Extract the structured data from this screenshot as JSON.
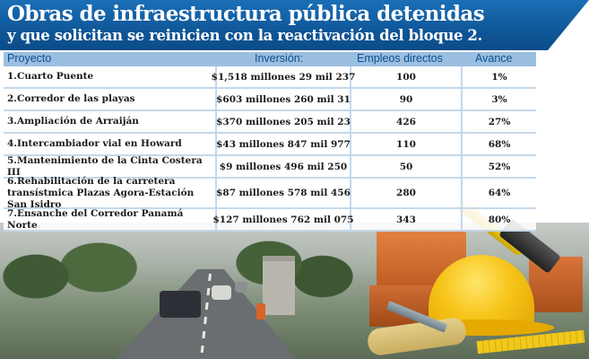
{
  "header": {
    "title": "Obras de infraestructura pública detenidas",
    "subtitle": "y que solicitan se reinicien con la reactivación del bloque 2."
  },
  "table": {
    "columns": {
      "project": "Proyecto",
      "investment": "Inversión:",
      "jobs": "Empleos directos",
      "progress": "Avance"
    },
    "rows": [
      {
        "project": "1.Cuarto Puente",
        "investment": "$1,518 millones 29 mil 237",
        "jobs": "100",
        "progress": "1%"
      },
      {
        "project": "2.Corredor de las playas",
        "investment": "$603 millones 260 mil 31",
        "jobs": "90",
        "progress": "3%"
      },
      {
        "project": "3.Ampliación de Arraiján",
        "investment": "$370 millones 205 mil 23",
        "jobs": "426",
        "progress": "27%"
      },
      {
        "project": "4.Intercambiador vial en Howard",
        "investment": "$43 millones 847 mil 977",
        "jobs": "110",
        "progress": "68%"
      },
      {
        "project": "5.Mantenimiento de la Cinta Costera III",
        "investment": "$9 millones 496 mil 250",
        "jobs": "50",
        "progress": "52%"
      },
      {
        "project": "6.Rehabilitación de la carretera transístmica Plazas Agora-Estación San Isidro",
        "investment": "$87 millones 578 mil 456",
        "jobs": "280",
        "progress": "64%"
      },
      {
        "project": "7.Ensanche del Corredor Panamá Norte",
        "investment": "$127 millones 762 mil 075",
        "jobs": "343",
        "progress": "80%"
      }
    ]
  },
  "colors": {
    "banner": "#1463a8",
    "header_row": "#9bbfe0",
    "header_text": "#0d4f8f",
    "row_border": "#c5d8ea"
  },
  "illustration": {
    "photo": "highway-construction-photo",
    "tools": [
      "brick-icon",
      "helmet-icon",
      "hammer-icon",
      "ruler-icon",
      "glove-icon",
      "trowel-icon"
    ]
  }
}
